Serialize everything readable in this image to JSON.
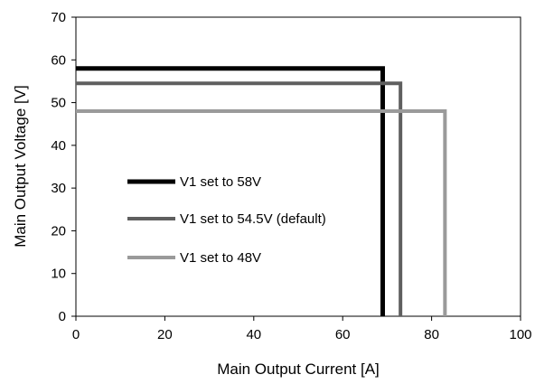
{
  "chart_data": {
    "type": "line",
    "xlabel": "Main Output Current [A]",
    "ylabel": "Main Output Voltage [V]",
    "xlim": [
      0,
      100
    ],
    "ylim": [
      0,
      70
    ],
    "x_ticks": [
      0,
      20,
      40,
      60,
      80,
      100
    ],
    "y_ticks": [
      0,
      10,
      20,
      30,
      40,
      50,
      60,
      70
    ],
    "grid": false,
    "legend_position": "left",
    "series": [
      {
        "name": "V1 set to 58V",
        "color": "#000000",
        "x": [
          0,
          69,
          69
        ],
        "y": [
          58,
          58,
          0
        ]
      },
      {
        "name": "V1 set to 54.5V (default)",
        "color": "#5f5f5f",
        "x": [
          0,
          73,
          73
        ],
        "y": [
          54.5,
          54.5,
          0
        ]
      },
      {
        "name": "V1 set to 48V",
        "color": "#9a9a9a",
        "x": [
          0,
          83,
          83
        ],
        "y": [
          48,
          48,
          0
        ]
      }
    ]
  }
}
